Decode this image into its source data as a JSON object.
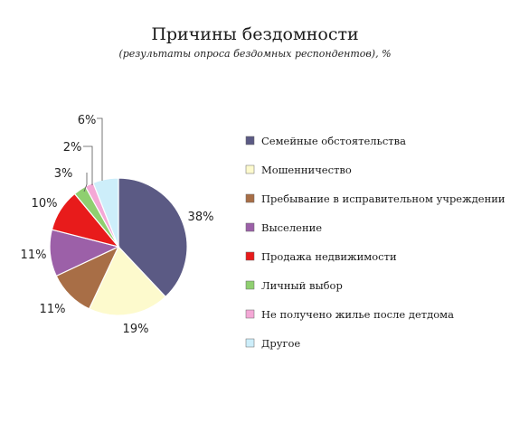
{
  "title": "Причины бездомности",
  "subtitle": "(результаты опроса бездомных респондентов), %",
  "chart_data": {
    "type": "pie",
    "title": "Причины бездомности",
    "subtitle": "(результаты опроса бездомных респондентов), %",
    "unit": "%",
    "start_angle_deg": 0,
    "direction": "clockwise",
    "legend_position": "right",
    "slices": [
      {
        "label": "Семейные обстоятельства",
        "value": 38,
        "value_label": "38%",
        "color": "#5b5a84"
      },
      {
        "label": "Мошенничество",
        "value": 19,
        "value_label": "19%",
        "color": "#fdfacd"
      },
      {
        "label": "Пребывание в исправительном учреждении",
        "value": 11,
        "value_label": "11%",
        "color": "#a86e46"
      },
      {
        "label": "Выселение",
        "value": 11,
        "value_label": "11%",
        "color": "#9c60a8"
      },
      {
        "label": "Продажа недвижимости",
        "value": 10,
        "value_label": "10%",
        "color": "#e81b1b"
      },
      {
        "label": "Личный выбор",
        "value": 3,
        "value_label": "3%",
        "color": "#8fcf70"
      },
      {
        "label": "Не получено жилье после детдома",
        "value": 2,
        "value_label": "2%",
        "color": "#f4a8d6"
      },
      {
        "label": "Другое",
        "value": 6,
        "value_label": "6%",
        "color": "#cdeefa"
      }
    ]
  }
}
